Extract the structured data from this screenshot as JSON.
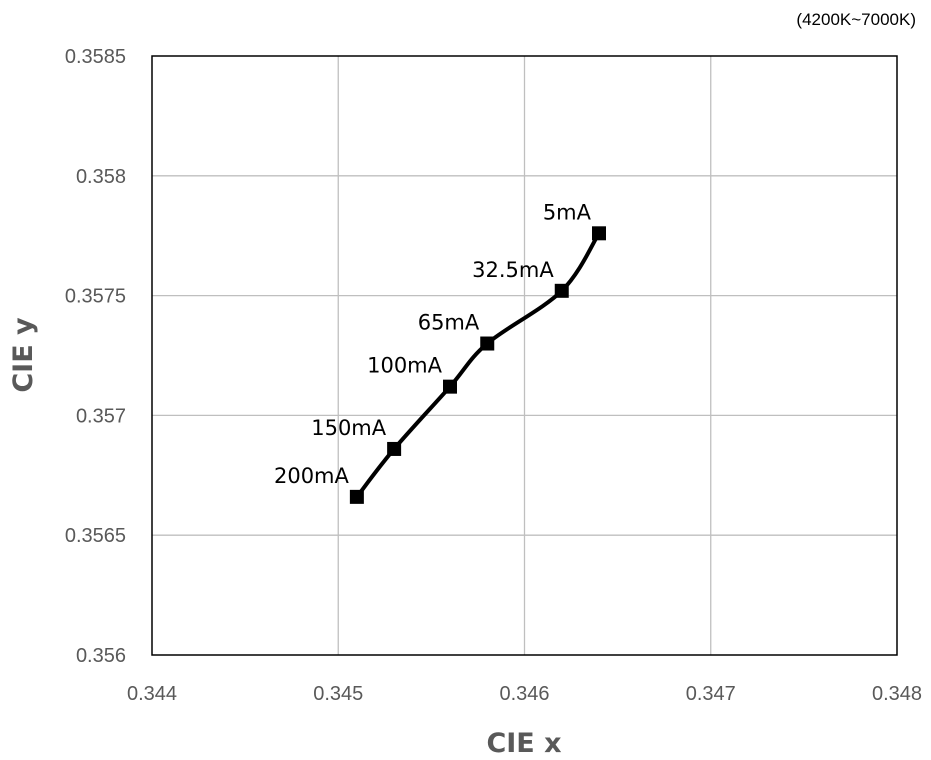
{
  "note": "(4200K~7000K)",
  "chart_data": {
    "type": "line",
    "xlabel": "CIE x",
    "ylabel": "CIE y",
    "xlim": [
      0.344,
      0.348
    ],
    "ylim": [
      0.356,
      0.3585
    ],
    "x_ticks": [
      "0.344",
      "0.345",
      "0.346",
      "0.347",
      "0.348"
    ],
    "y_ticks": [
      "0.356",
      "0.3565",
      "0.357",
      "0.3575",
      "0.358",
      "0.3585"
    ],
    "grid": true,
    "line_style": "smooth",
    "marker": "square",
    "color": "#000000",
    "series": [
      {
        "points": [
          {
            "x": 0.3451,
            "y": 0.35666,
            "label": "200mA"
          },
          {
            "x": 0.3453,
            "y": 0.35686,
            "label": "150mA"
          },
          {
            "x": 0.3456,
            "y": 0.35712,
            "label": "100mA"
          },
          {
            "x": 0.3458,
            "y": 0.3573,
            "label": "65mA"
          },
          {
            "x": 0.3462,
            "y": 0.35752,
            "label": "32.5mA"
          },
          {
            "x": 0.3464,
            "y": 0.35776,
            "label": "5mA"
          }
        ]
      }
    ]
  }
}
